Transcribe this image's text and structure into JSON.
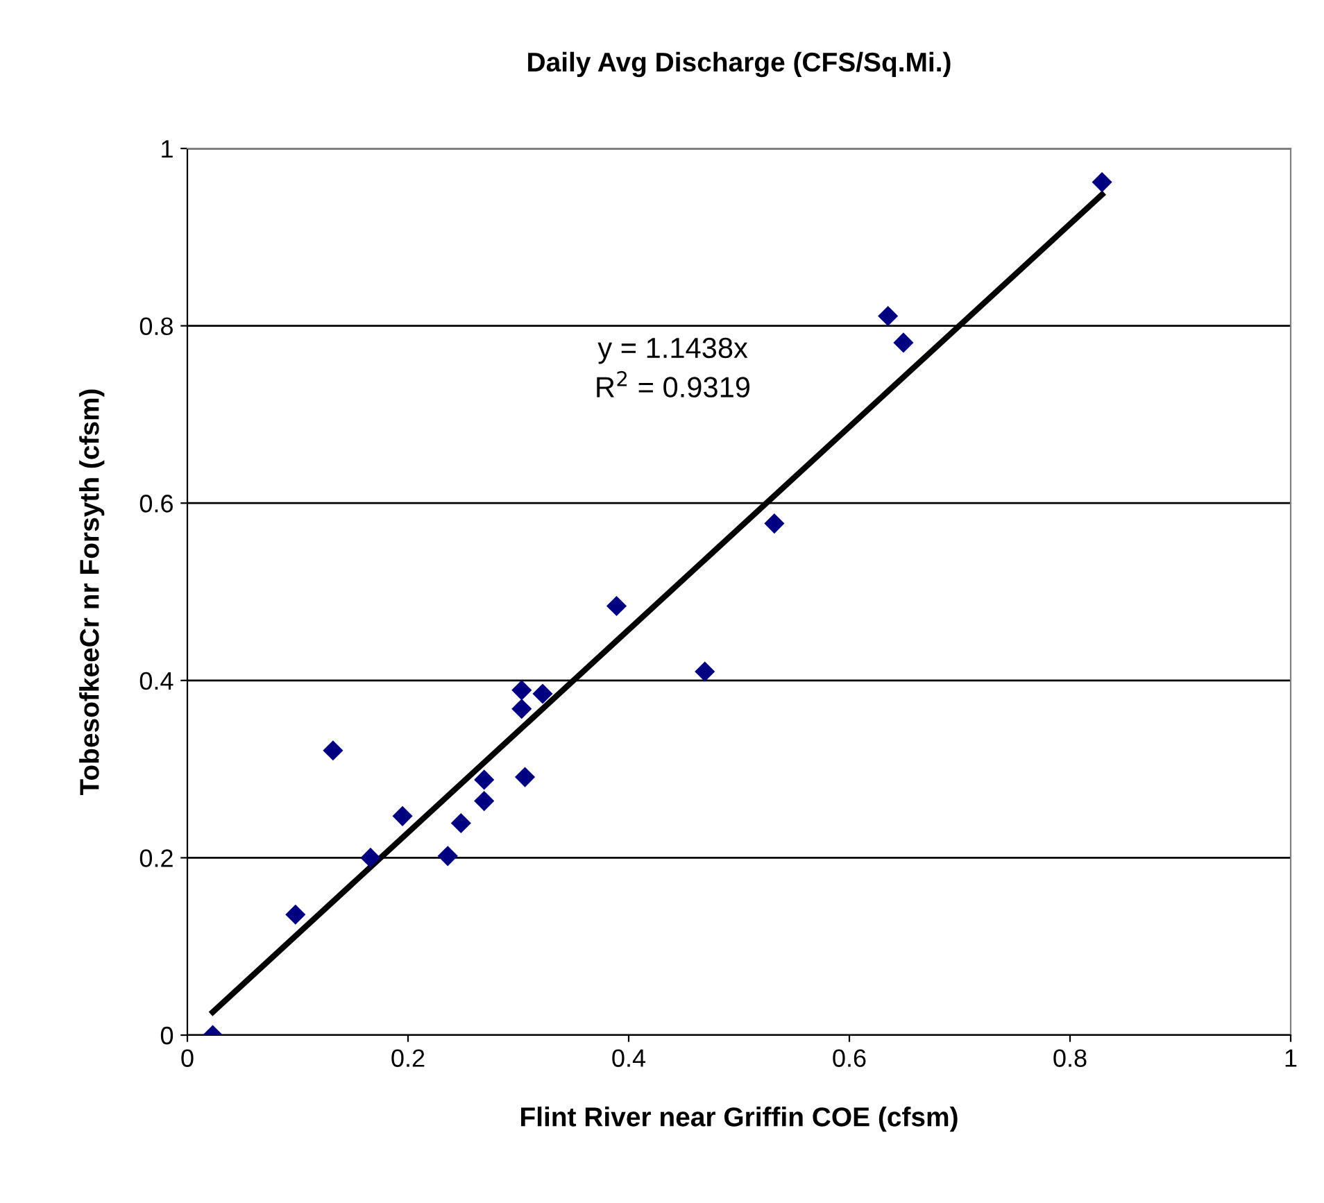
{
  "chart_data": {
    "type": "scatter",
    "title": "Daily Avg Discharge (CFS/Sq.Mi.)",
    "xlabel": "Flint River near Griffin COE (cfsm)",
    "ylabel": "TobesofkeeCr nr Forsyth (cfsm)",
    "annotations": [
      "y = 1.1438x\nR$^{2}$ = 0.9319"
    ],
    "xlim": [
      0,
      1
    ],
    "ylim": [
      0,
      1
    ],
    "xticks": [
      0,
      0.2,
      0.4,
      0.6,
      0.8,
      1
    ],
    "yticks": [
      0,
      0.2,
      0.4,
      0.6,
      0.8,
      1
    ],
    "grid": "y",
    "legend": false,
    "series": [
      {
        "color": "#000080",
        "marker": "diamond",
        "x": [
          0.023,
          0.098,
          0.132,
          0.166,
          0.195,
          0.236,
          0.248,
          0.269,
          0.269,
          0.303,
          0.303,
          0.306,
          0.322,
          0.389,
          0.469,
          0.532,
          0.635,
          0.649,
          0.829
        ],
        "values": [
          0.0,
          0.136,
          0.321,
          0.2,
          0.247,
          0.202,
          0.239,
          0.264,
          0.288,
          0.368,
          0.389,
          0.291,
          0.385,
          0.484,
          0.41,
          0.577,
          0.811,
          0.781,
          0.962
        ]
      },
      {
        "type": "line",
        "color": "#000000",
        "marker": "none",
        "line_style": "solid",
        "x": [
          0.023,
          0.829
        ],
        "values": [
          0.026,
          0.948
        ]
      }
    ]
  }
}
